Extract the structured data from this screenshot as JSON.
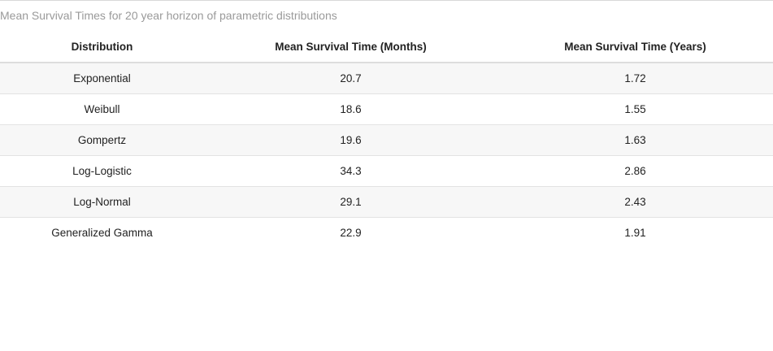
{
  "caption": "Mean Survival Times for 20 year horizon of parametric distributions",
  "table": {
    "headers": [
      "Distribution",
      "Mean Survival Time (Months)",
      "Mean Survival Time (Years)"
    ],
    "rows": [
      [
        "Exponential",
        "20.7",
        "1.72"
      ],
      [
        "Weibull",
        "18.6",
        "1.55"
      ],
      [
        "Gompertz",
        "19.6",
        "1.63"
      ],
      [
        "Log-Logistic",
        "34.3",
        "2.86"
      ],
      [
        "Log-Normal",
        "29.1",
        "2.43"
      ],
      [
        "Generalized Gamma",
        "22.9",
        "1.91"
      ]
    ]
  }
}
